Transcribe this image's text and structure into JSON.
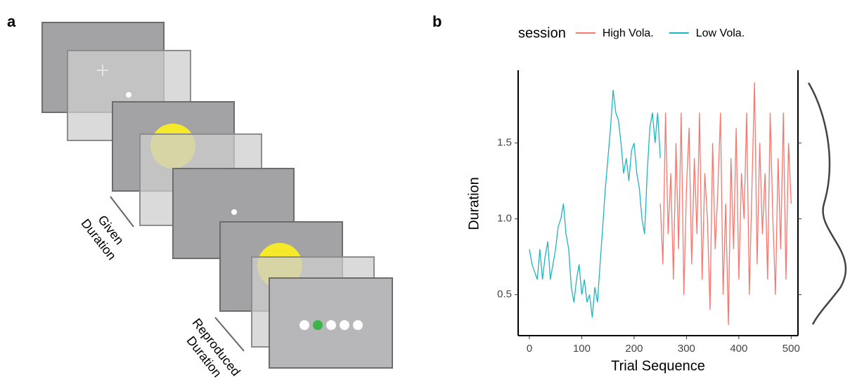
{
  "panel_a": {
    "label": "a",
    "given_label": [
      "Given",
      "Duration"
    ],
    "reproduced_label": [
      "Reproduced",
      "Duration"
    ]
  },
  "chart_data": {
    "type": "line",
    "panel_label": "b",
    "x_label": "Trial Sequence",
    "y_label": "Duration",
    "legend_title": "session",
    "legend_position": "top",
    "xlim": [
      -21.5,
      513
    ],
    "ylim": [
      0.23,
      1.98
    ],
    "xticks": [
      0,
      100,
      200,
      300,
      400,
      500
    ],
    "yticks": [
      0.5,
      {
        "value": 1,
        "label": "1.0"
      },
      1.5
    ],
    "grid": false,
    "series": [
      {
        "name": "High Vola.",
        "color": "#f8766d",
        "x": [
          250,
          255,
          260,
          265,
          270,
          275,
          280,
          285,
          290,
          295,
          300,
          305,
          310,
          315,
          320,
          325,
          330,
          335,
          340,
          345,
          350,
          355,
          360,
          365,
          370,
          375,
          380,
          385,
          390,
          395,
          400,
          405,
          410,
          415,
          420,
          425,
          430,
          435,
          440,
          445,
          450,
          455,
          460,
          465,
          470,
          475,
          480,
          485,
          490,
          495,
          500
        ],
        "values": [
          1.1,
          0.7,
          1.7,
          0.9,
          1.3,
          0.6,
          1.5,
          0.8,
          1.7,
          0.5,
          1.2,
          1.6,
          0.7,
          1.4,
          0.9,
          1.7,
          0.6,
          1.3,
          1.0,
          0.4,
          1.5,
          0.8,
          1.2,
          1.7,
          0.5,
          1.1,
          0.3,
          1.4,
          0.8,
          1.6,
          0.6,
          1.3,
          1.0,
          1.7,
          0.5,
          1.2,
          1.9,
          0.7,
          1.5,
          0.9,
          1.3,
          0.6,
          1.7,
          1.0,
          0.5,
          1.4,
          0.8,
          1.7,
          0.6,
          1.5,
          1.1
        ]
      },
      {
        "name": "Low Vola.",
        "color": "#1fb5c0",
        "x": [
          0,
          5,
          10,
          15,
          20,
          25,
          30,
          35,
          40,
          45,
          50,
          55,
          60,
          65,
          70,
          75,
          80,
          85,
          90,
          95,
          100,
          105,
          110,
          115,
          120,
          125,
          130,
          135,
          140,
          145,
          150,
          155,
          160,
          165,
          170,
          175,
          180,
          185,
          190,
          195,
          200,
          205,
          210,
          215,
          220,
          225,
          230,
          235,
          240,
          245,
          250
        ],
        "values": [
          0.8,
          0.7,
          0.65,
          0.6,
          0.8,
          0.6,
          0.75,
          0.85,
          0.6,
          0.7,
          0.8,
          0.95,
          1.0,
          1.1,
          0.9,
          0.8,
          0.55,
          0.45,
          0.6,
          0.7,
          0.5,
          0.6,
          0.45,
          0.5,
          0.35,
          0.55,
          0.45,
          0.7,
          0.95,
          1.2,
          1.4,
          1.6,
          1.85,
          1.7,
          1.65,
          1.5,
          1.3,
          1.4,
          1.25,
          1.45,
          1.5,
          1.3,
          1.2,
          1.0,
          0.9,
          1.3,
          1.6,
          1.7,
          1.5,
          1.7,
          1.4
        ]
      }
    ]
  }
}
